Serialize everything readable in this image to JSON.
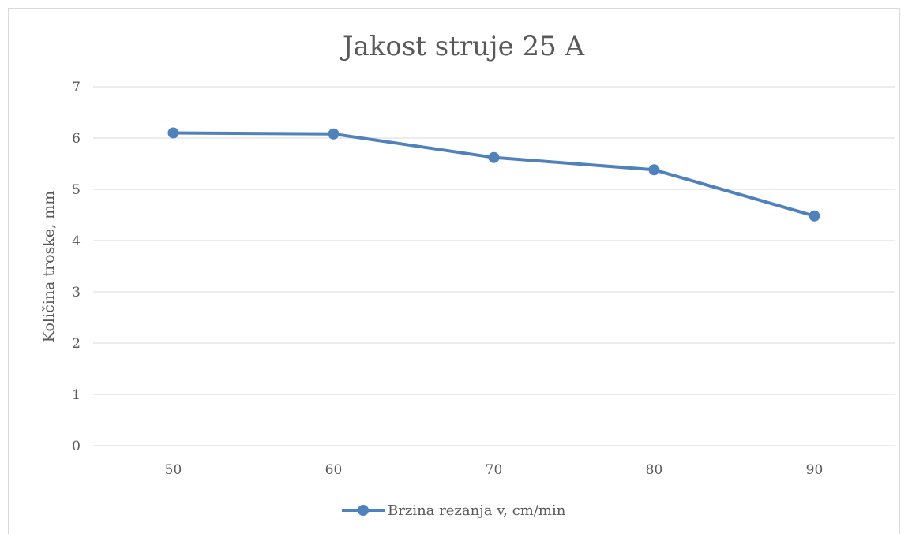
{
  "chart_data": {
    "type": "line",
    "title": "Jakost struje 25 A",
    "ylabel": "Količina troske, mm",
    "xlabel": "",
    "categories": [
      "50",
      "60",
      "70",
      "80",
      "90"
    ],
    "series": [
      {
        "name": "Brzina rezanja v, cm/min",
        "values": [
          6.1,
          6.08,
          5.62,
          5.38,
          4.48
        ],
        "color": "#4f81bd"
      }
    ],
    "ylim": [
      0,
      7
    ],
    "yticks": [
      "0",
      "1",
      "2",
      "3",
      "4",
      "5",
      "6",
      "7"
    ],
    "grid": true,
    "legend_position": "bottom"
  }
}
